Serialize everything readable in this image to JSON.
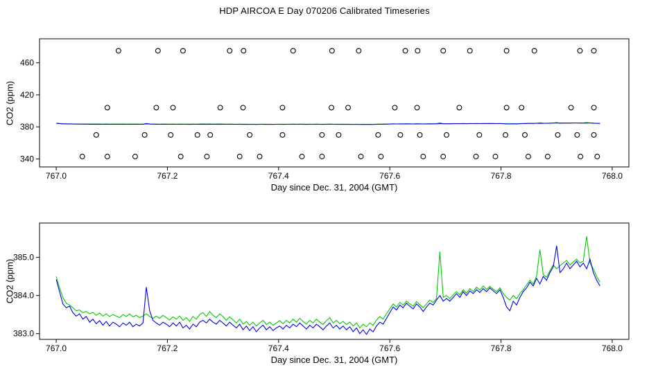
{
  "title": "HDP AIRCOA E  Day 070206  Calibrated Timeseries",
  "colors": {
    "green": "#00c800",
    "blue": "#0000ee"
  },
  "chart_data": [
    {
      "type": "line",
      "panel": "top",
      "xlabel": "Day since Dec. 31, 2004 (GMT)",
      "ylabel": "CO2 (ppm)",
      "xlim": [
        766.97,
        768.03
      ],
      "ylim": [
        330,
        490
      ],
      "xtick_labels": [
        "767.0",
        "767.2",
        "767.4",
        "767.6",
        "767.8",
        "768.0"
      ],
      "ytick_labels": [
        "340",
        "380",
        "420",
        "460"
      ],
      "grid": false,
      "reference_circles": [
        {
          "level": 475,
          "x": [
            767.112,
            767.183,
            767.228,
            767.312,
            767.337,
            767.426,
            767.496,
            767.544,
            767.628,
            767.65,
            767.696,
            767.744,
            767.81,
            767.86,
            767.942,
            767.967
          ]
        },
        {
          "level": 404,
          "x": [
            767.092,
            767.18,
            767.21,
            767.295,
            767.336,
            767.407,
            767.495,
            767.525,
            767.609,
            767.649,
            767.725,
            767.81,
            767.837,
            767.926,
            767.967
          ]
        },
        {
          "level": 370,
          "x": [
            767.072,
            767.159,
            767.206,
            767.254,
            767.277,
            767.348,
            767.407,
            767.478,
            767.508,
            767.579,
            767.619,
            767.654,
            767.702,
            767.761,
            767.808,
            767.843,
            767.902,
            767.937,
            767.967
          ]
        },
        {
          "level": 343,
          "x": [
            767.047,
            767.092,
            767.142,
            767.224,
            767.271,
            767.33,
            767.366,
            767.442,
            767.478,
            767.548,
            767.584,
            767.66,
            767.696,
            767.755,
            767.79,
            767.849,
            767.884,
            767.943,
            767.973
          ]
        }
      ]
    },
    {
      "type": "line",
      "panel": "bottom",
      "xlabel": "Day since Dec. 31, 2004 (GMT)",
      "ylabel": "CO2 (ppm)",
      "xlim": [
        766.97,
        768.03
      ],
      "ylim": [
        382.85,
        385.9
      ],
      "xtick_labels": [
        "767.0",
        "767.2",
        "767.4",
        "767.6",
        "767.8",
        "768.0"
      ],
      "ytick_labels": [
        "383.0",
        "384.0",
        "385.0"
      ],
      "grid": false,
      "x_start": 767.0,
      "x_step": 0.006,
      "series": [
        {
          "name": "green",
          "values": [
            384.5,
            384.2,
            383.95,
            383.8,
            383.75,
            383.68,
            383.6,
            383.62,
            383.55,
            383.58,
            383.52,
            383.56,
            383.48,
            383.54,
            383.46,
            383.52,
            383.45,
            383.5,
            383.46,
            383.42,
            383.5,
            383.45,
            383.52,
            383.44,
            383.48,
            383.42,
            383.46,
            383.52,
            383.45,
            383.4,
            383.46,
            383.4,
            383.48,
            383.42,
            383.36,
            383.44,
            383.38,
            383.46,
            383.35,
            383.42,
            383.32,
            383.45,
            383.38,
            383.5,
            383.55,
            383.45,
            383.58,
            383.48,
            383.42,
            383.52,
            383.45,
            383.35,
            383.44,
            383.36,
            383.28,
            383.38,
            383.25,
            383.32,
            383.22,
            383.3,
            383.2,
            383.28,
            383.35,
            383.24,
            383.3,
            383.22,
            383.28,
            383.34,
            383.26,
            383.35,
            383.28,
            383.38,
            383.3,
            383.4,
            383.32,
            383.25,
            383.35,
            383.28,
            383.38,
            383.3,
            383.24,
            383.34,
            383.42,
            383.28,
            383.35,
            383.26,
            383.32,
            383.24,
            383.3,
            383.2,
            383.28,
            383.15,
            383.25,
            383.18,
            383.28,
            383.22,
            383.35,
            383.45,
            383.38,
            383.52,
            383.65,
            383.78,
            383.7,
            383.82,
            383.75,
            383.85,
            383.78,
            383.72,
            383.84,
            383.76,
            383.68,
            383.78,
            383.88,
            383.82,
            383.92,
            385.15,
            383.95,
            384.0,
            383.92,
            384.02,
            384.1,
            384.02,
            384.15,
            384.06,
            384.18,
            384.1,
            384.22,
            384.14,
            384.25,
            384.16,
            384.24,
            384.16,
            384.1,
            384.2,
            384.05,
            383.95,
            383.88,
            384.0,
            383.92,
            384.05,
            384.15,
            384.28,
            384.4,
            384.3,
            384.52,
            385.2,
            384.55,
            384.48,
            384.65,
            384.8,
            384.7,
            384.78,
            384.85,
            384.92,
            384.8,
            384.88,
            384.95,
            384.85,
            384.9,
            385.55,
            384.85,
            384.7,
            384.5,
            384.35
          ]
        },
        {
          "name": "blue",
          "values": [
            384.42,
            384.1,
            383.78,
            383.68,
            383.72,
            383.55,
            383.46,
            383.52,
            383.38,
            383.45,
            383.3,
            383.38,
            383.26,
            383.34,
            383.22,
            383.32,
            383.2,
            383.3,
            383.25,
            383.18,
            383.28,
            383.22,
            383.3,
            383.18,
            383.25,
            383.2,
            383.28,
            384.22,
            383.6,
            383.35,
            383.28,
            383.22,
            383.3,
            383.25,
            383.18,
            383.28,
            383.2,
            383.3,
            383.15,
            383.22,
            383.12,
            383.25,
            383.18,
            383.3,
            383.35,
            383.28,
            383.38,
            383.3,
            383.25,
            383.35,
            383.28,
            383.2,
            383.3,
            383.22,
            383.15,
            383.25,
            383.1,
            383.2,
            383.08,
            383.18,
            383.05,
            383.15,
            383.22,
            383.1,
            383.18,
            383.08,
            383.15,
            383.2,
            383.12,
            383.22,
            383.15,
            383.25,
            383.18,
            383.28,
            383.2,
            383.12,
            383.22,
            383.15,
            383.25,
            383.18,
            383.1,
            383.2,
            383.28,
            383.15,
            383.22,
            383.12,
            383.2,
            383.1,
            383.18,
            383.05,
            383.15,
            383.0,
            383.1,
            382.98,
            383.12,
            383.05,
            383.2,
            383.3,
            383.25,
            383.4,
            383.55,
            383.7,
            383.62,
            383.75,
            383.68,
            383.8,
            383.72,
            383.65,
            383.78,
            383.7,
            383.58,
            383.7,
            383.8,
            383.75,
            383.88,
            384.0,
            383.85,
            383.92,
            383.85,
            383.95,
            384.05,
            383.95,
            384.1,
            384.0,
            384.12,
            384.05,
            384.15,
            384.08,
            384.18,
            384.1,
            384.2,
            384.12,
            384.05,
            384.15,
            383.95,
            383.7,
            383.6,
            383.85,
            383.75,
            383.95,
            384.1,
            384.2,
            384.35,
            384.25,
            384.45,
            384.3,
            384.5,
            384.4,
            384.6,
            384.75,
            385.3,
            384.6,
            384.7,
            384.85,
            384.7,
            384.8,
            384.9,
            384.75,
            384.85,
            384.7,
            384.95,
            384.6,
            384.4,
            384.25
          ]
        }
      ]
    }
  ]
}
